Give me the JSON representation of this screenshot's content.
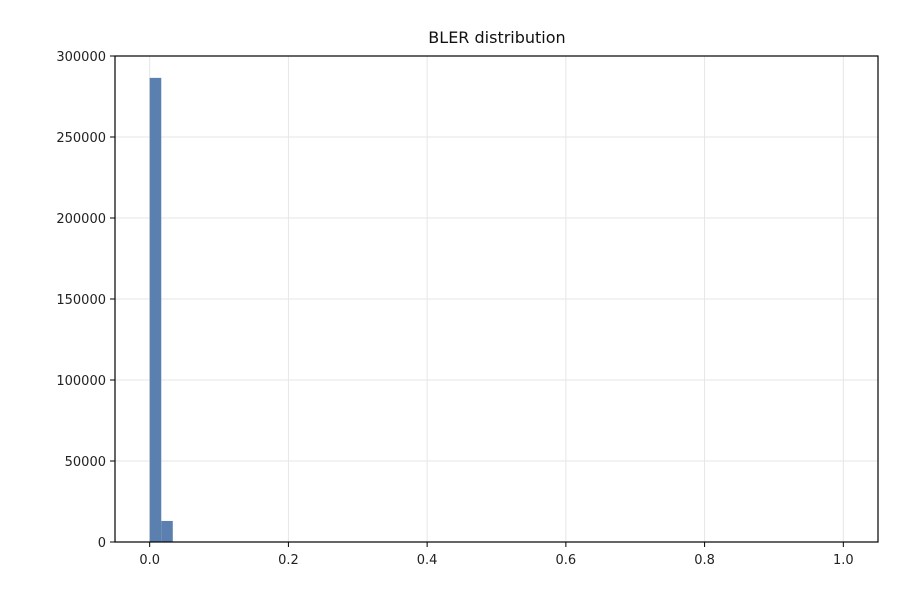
{
  "chart_data": {
    "type": "histogram",
    "title": "BLER distribution",
    "xlabel": "",
    "ylabel": "",
    "xlim": [
      -0.05,
      1.05
    ],
    "ylim": [
      0,
      300000
    ],
    "x_ticks": [
      0.0,
      0.2,
      0.4,
      0.6,
      0.8,
      1.0
    ],
    "x_tick_labels": [
      "0.0",
      "0.2",
      "0.4",
      "0.6",
      "0.8",
      "1.0"
    ],
    "y_ticks": [
      0,
      50000,
      100000,
      150000,
      200000,
      250000,
      300000
    ],
    "y_tick_labels": [
      "0",
      "50000",
      "100000",
      "150000",
      "200000",
      "250000",
      "300000"
    ],
    "bins": [
      {
        "x0": 0.0,
        "x1": 0.0167,
        "count": 286500
      },
      {
        "x0": 0.0167,
        "x1": 0.0333,
        "count": 13000
      }
    ],
    "grid": true,
    "bar_color": "#5b7fae",
    "grid_color": "#e6e6e6",
    "axis_color": "#000000"
  }
}
